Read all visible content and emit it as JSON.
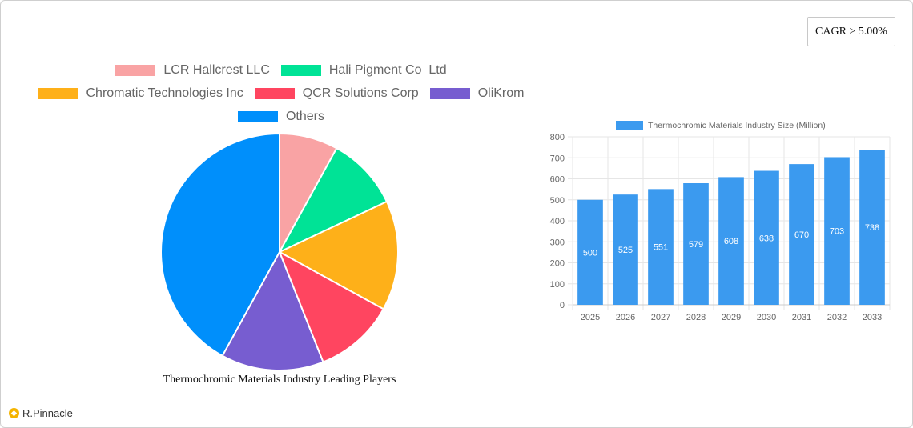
{
  "cagr_label": "CAGR > 5.00%",
  "brand": {
    "name": "R.Pinnacle",
    "icon": "pinnacle-logo-icon"
  },
  "chart_data": [
    {
      "type": "pie",
      "title": "Thermochromic Materials Industry Leading Players",
      "legend_position": "top",
      "legend_rows": [
        [
          0,
          1
        ],
        [
          2,
          3,
          4
        ],
        [
          5
        ]
      ],
      "slices": [
        {
          "name": "LCR Hallcrest LLC",
          "value": 8,
          "color": "#F9A3A4"
        },
        {
          "name": "Hali Pigment Co  Ltd",
          "value": 10,
          "color": "#00E396"
        },
        {
          "name": "Chromatic Technologies Inc",
          "value": 15,
          "color": "#FEB019"
        },
        {
          "name": "QCR Solutions Corp",
          "value": 11,
          "color": "#FF4560"
        },
        {
          "name": "OliKrom",
          "value": 14,
          "color": "#775DD0"
        },
        {
          "name": "Others",
          "value": 42,
          "color": "#008FFB"
        }
      ]
    },
    {
      "type": "bar",
      "legend_position": "top",
      "series": [
        {
          "name": "Thermochromic Materials Industry Size (Million)",
          "color": "#3B9AEF",
          "values": [
            500,
            525,
            551,
            579,
            608,
            638,
            670,
            703,
            738
          ]
        }
      ],
      "categories": [
        "2025",
        "2026",
        "2027",
        "2028",
        "2029",
        "2030",
        "2031",
        "2032",
        "2033"
      ],
      "ylim": [
        0,
        800
      ],
      "yticks": [
        0,
        100,
        200,
        300,
        400,
        500,
        600,
        700,
        800
      ],
      "grid": true,
      "data_labels": true
    }
  ]
}
